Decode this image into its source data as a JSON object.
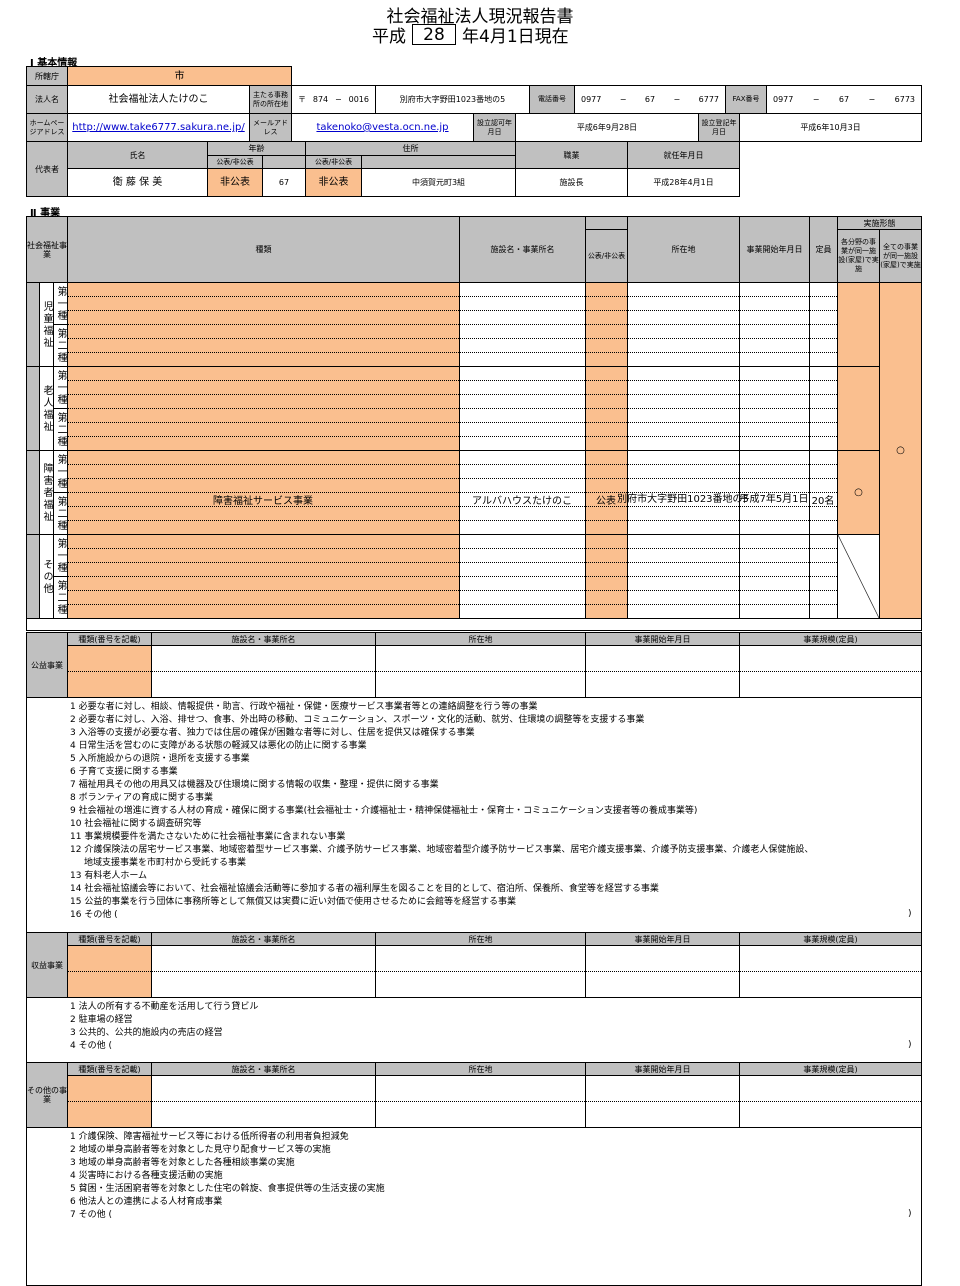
{
  "title": {
    "line1": "社会福祉法人現況報告書",
    "era": "平成",
    "year": "28",
    "suffix": "年4月1日現在"
  },
  "basic": {
    "section_title": "Ⅰ 基本情報",
    "labels": {
      "jurisdiction": "所轄庁",
      "corp_name": "法人名",
      "office_address": "主たる事務所の所在地",
      "phone": "電話番号",
      "fax": "FAX番号",
      "homepage": "ホームページアドレス",
      "email": "メールアドレス",
      "approval_date": "設立認可年月日",
      "registration_date": "設立登記年月日",
      "representative": "代表者"
    },
    "jurisdiction": "市",
    "corp_name": "社会福祉法人たけのこ",
    "postal": {
      "mark": "〒",
      "first": "874",
      "dash": "−",
      "second": "0016"
    },
    "address": "別府市大字野田1023番地の5",
    "phone": {
      "a": "0977",
      "b": "67",
      "c": "6777",
      "dash": "−"
    },
    "fax": {
      "a": "0977",
      "b": "67",
      "c": "6773",
      "dash": "−"
    },
    "homepage": "http://www.take6777.sakura.ne.jp/",
    "email": "takenoko@vesta.ocn.ne.jp",
    "approval_date": "平成6年9月28日",
    "registration_date": "平成6年10月3日"
  },
  "rep": {
    "labels": {
      "name": "氏名",
      "age": "年齢",
      "disclosure": "公表/非公表",
      "address": "住所",
      "occupation": "職業",
      "appointed": "就任年月日"
    },
    "name": "衛 藤 保 美",
    "age_disclosure": "非公表",
    "age": "67",
    "address_disclosure": "非公表",
    "address": "中須賀元町3組",
    "occupation": "施設長",
    "appointed": "平成28年4月1日"
  },
  "biz": {
    "section_title": "Ⅱ 事業",
    "headers": {
      "social": "社会福祉事業",
      "type": "種類",
      "facility": "施設名・事業所名",
      "public": "公表/非公表",
      "location": "所在地",
      "start": "事業開始年月日",
      "capacity": "定員",
      "form": "実施形態",
      "form_a": "各分野の事業が同一施設(家屋)で実施",
      "form_b": "全ての事業が同一施設(家屋)で実施"
    },
    "categories": [
      {
        "name": "児童福祉",
        "first": "第一種",
        "second": "第二種"
      },
      {
        "name": "老人福祉",
        "first": "第一種",
        "second": "第二種"
      },
      {
        "name": "障害者福祉",
        "first": "第一種",
        "second": "第二種"
      },
      {
        "name": "その他",
        "first": "第一種",
        "second": "第二種"
      }
    ],
    "entry": {
      "type": "障害福祉サービス事業",
      "facility": "アルバハウスたけのこ",
      "public": "公表",
      "location": "別府市大字野田1023番地の5",
      "start": "平成7年5月1日",
      "capacity": "20名"
    },
    "marks": {
      "a": "○",
      "b": "○"
    }
  },
  "sub_headers": [
    "種類(番号を記載)",
    "施設名・事業所名",
    "所在地",
    "事業開始年月日",
    "事業規模(定員)"
  ],
  "public_business": {
    "label": "公益事業",
    "close": ")",
    "items": [
      {
        "text": "1  必要な者に対し、相談、情報提供・助言、行政や福祉・保健・医療サービス事業者等との連絡調整を行う等の事業"
      },
      {
        "text": "2  必要な者に対し、入浴、排せつ、食事、外出時の移動、コミュニケーション、スポーツ・文化的活動、就労、住環境の調整等を支援する事業"
      },
      {
        "text": "3  入浴等の支援が必要な者、独力では住居の確保が困難な者等に対し、住居を提供又は確保する事業"
      },
      {
        "text": "4  日常生活を営むのに支障がある状態の軽減又は悪化の防止に関する事業"
      },
      {
        "text": "5  入所施設からの退院・退所を支援する事業"
      },
      {
        "text": "6  子育て支援に関する事業"
      },
      {
        "text": "7  福祉用具その他の用具又は機器及び住環境に関する情報の収集・整理・提供に関する事業"
      },
      {
        "text": "8  ボランティアの育成に関する事業"
      },
      {
        "text": "9  社会福祉の増進に資する人材の育成・確保に関する事業(社会福祉士・介護福祉士・精神保健福祉士・保育士・コミュニケーション支援者等の養成事業等)"
      },
      {
        "text": "10  社会福祉に関する調査研究等"
      },
      {
        "text": "11  事業規模要件を満たさないために社会福祉事業に含まれない事業"
      },
      {
        "text": "12  介護保険法の居宅サービス事業、地域密着型サービス事業、介護予防サービス事業、地域密着型介護予防サービス事業、居宅介護支援事業、介護予防支援事業、介護老人保健施設、",
        "cont": "地域支援事業を市町村から受託する事業"
      },
      {
        "text": "13  有料老人ホーム"
      },
      {
        "text": "14  社会福祉協議会等において、社会福祉協議会活動等に参加する者の福利厚生を図ることを目的として、宿泊所、保養所、食堂等を経営する事業"
      },
      {
        "text": "15  公益的事業を行う団体に事務所等として無償又は実費に近い対価で使用させるために会館等を経営する事業"
      },
      {
        "text": "16  その他  ("
      }
    ]
  },
  "profit_business": {
    "label": "収益事業",
    "close": ")",
    "items": [
      {
        "text": "1  法人の所有する不動産を活用して行う貸ビル"
      },
      {
        "text": "2  駐車場の経営"
      },
      {
        "text": "3  公共的、公共的施設内の売店の経営"
      },
      {
        "text": "4  その他  ("
      }
    ]
  },
  "other_business": {
    "label": "その他の事業",
    "close": ")",
    "items": [
      {
        "text": "1  介護保険、障害福祉サービス等における低所得者の利用者負担減免"
      },
      {
        "text": "2  地域の単身高齢者等を対象とした見守り配食サービス等の実施"
      },
      {
        "text": "3  地域の単身高齢者等を対象とした各種相談事業の実施"
      },
      {
        "text": "4  災害時における各種支援活動の実施"
      },
      {
        "text": "5  貧困・生活困窮者等を対象とした住宅の斡旋、食事提供等の生活支援の実施"
      },
      {
        "text": "6  他法人との連携による人材育成事業"
      },
      {
        "text": "7  その他  ("
      }
    ]
  },
  "colors": {
    "header_gray": "#c0c0c0",
    "input_orange": "#fabf8f",
    "link": "#0000cc"
  }
}
